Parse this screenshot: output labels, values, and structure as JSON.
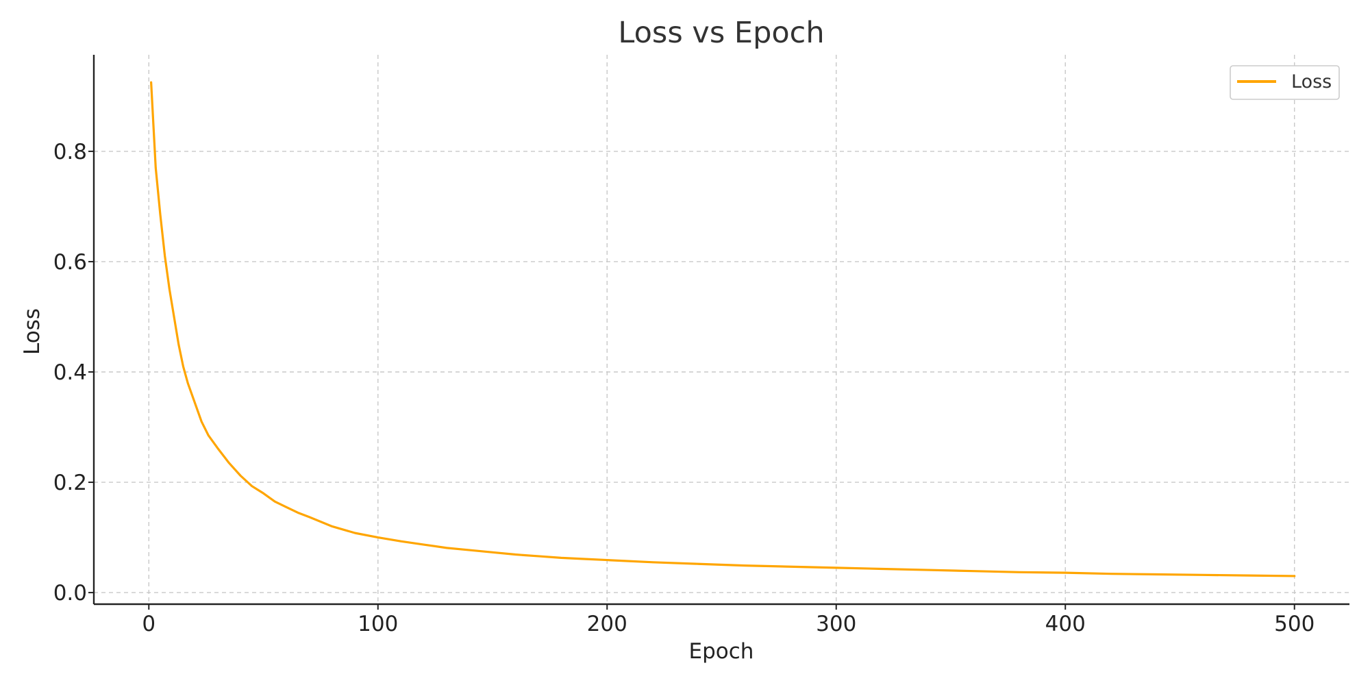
{
  "chart_data": {
    "type": "line",
    "title": "Loss vs Epoch",
    "xlabel": "Epoch",
    "ylabel": "Loss",
    "xlim": [
      -24,
      524
    ],
    "ylim": [
      -0.021,
      0.975
    ],
    "xticks": [
      0,
      100,
      200,
      300,
      400,
      500
    ],
    "xtick_labels": [
      "0",
      "100",
      "200",
      "300",
      "400",
      "500"
    ],
    "yticks": [
      0.0,
      0.2,
      0.4,
      0.6,
      0.8
    ],
    "ytick_labels": [
      "0.0",
      "0.2",
      "0.4",
      "0.6",
      "0.8"
    ],
    "grid": true,
    "legend_position": "top-right",
    "series": [
      {
        "name": "Loss",
        "color": "#FFA500",
        "x": [
          1,
          3,
          5,
          7,
          9,
          11,
          13,
          15,
          17,
          20,
          23,
          26,
          30,
          35,
          40,
          45,
          50,
          55,
          60,
          65,
          70,
          80,
          90,
          100,
          110,
          120,
          130,
          140,
          150,
          160,
          170,
          180,
          190,
          200,
          220,
          240,
          260,
          280,
          300,
          320,
          340,
          360,
          380,
          400,
          420,
          440,
          460,
          480,
          500
        ],
        "y": [
          0.925,
          0.77,
          0.685,
          0.61,
          0.55,
          0.5,
          0.45,
          0.41,
          0.38,
          0.345,
          0.31,
          0.285,
          0.262,
          0.235,
          0.212,
          0.193,
          0.18,
          0.165,
          0.155,
          0.145,
          0.137,
          0.12,
          0.108,
          0.1,
          0.093,
          0.087,
          0.081,
          0.077,
          0.073,
          0.069,
          0.066,
          0.063,
          0.061,
          0.059,
          0.055,
          0.052,
          0.049,
          0.047,
          0.045,
          0.043,
          0.041,
          0.039,
          0.037,
          0.036,
          0.034,
          0.033,
          0.032,
          0.031,
          0.03
        ]
      }
    ]
  }
}
